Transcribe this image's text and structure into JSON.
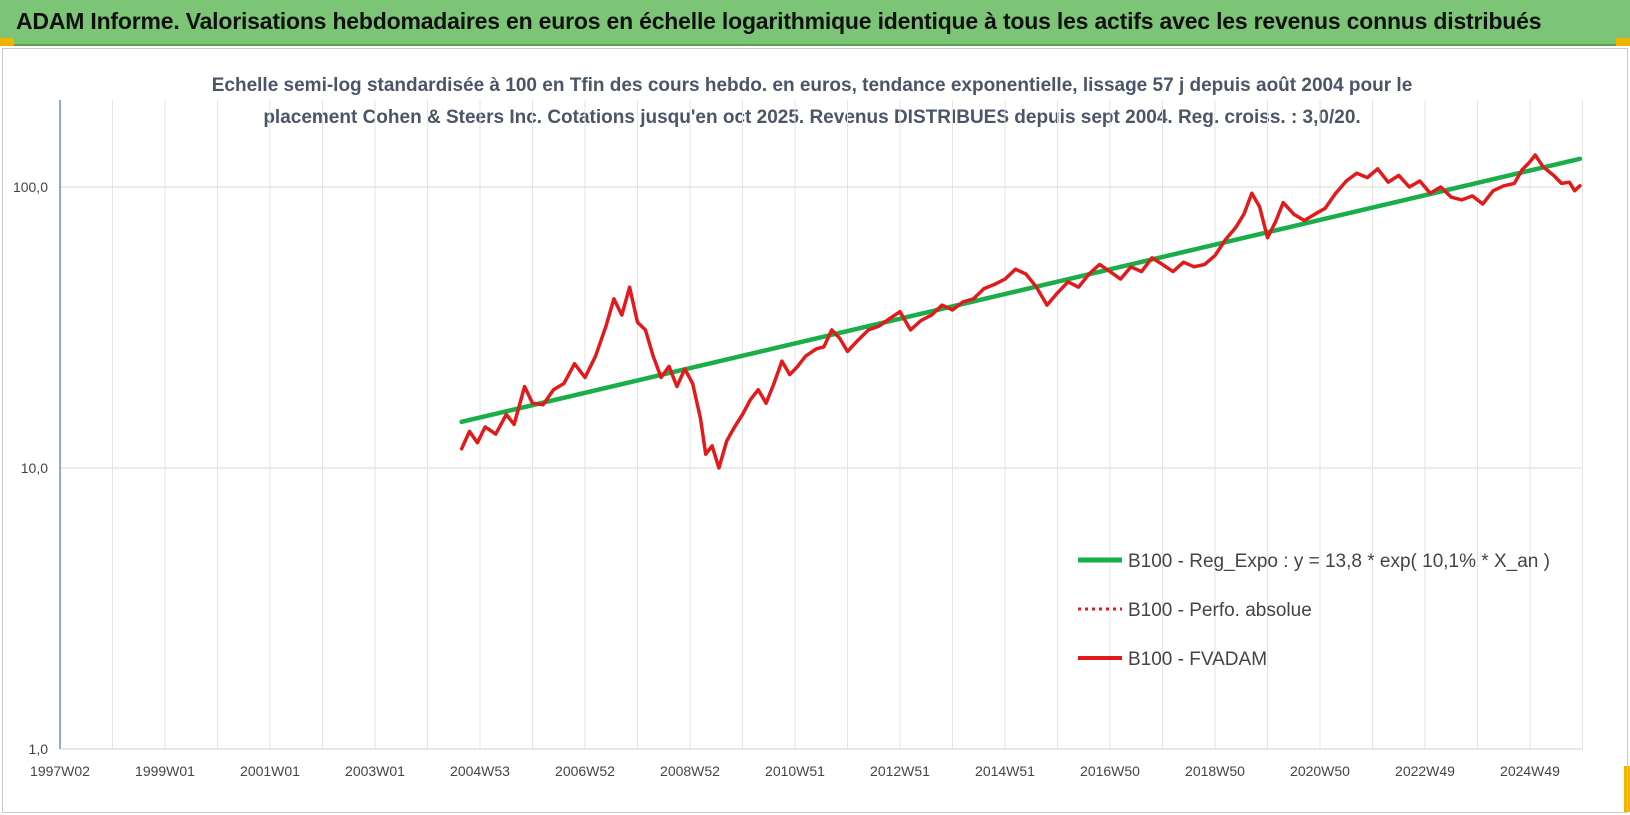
{
  "header": {
    "title": "ADAM Informe. Valorisations hebdomadaires en euros en échelle logarithmique identique à tous les actifs avec les revenus connus distribués"
  },
  "chart_data": {
    "type": "line",
    "subtitle_lines": [
      "Echelle semi-log standardisée à 100 en Tfin des cours hebdo. en euros, tendance exponentielle, lissage 57 j depuis août 2004 pour le",
      "placement Cohen & Steers Inc. Cotations jusqu'en oct 2025. Revenus DISTRIBUES depuis sept 2004. Reg. croiss. : 3,0/20."
    ],
    "y_scale": "log",
    "ylim": [
      1,
      180
    ],
    "y_ticks": [
      {
        "value": 1,
        "label": "1,0"
      },
      {
        "value": 10,
        "label": "10,0"
      },
      {
        "value": 100,
        "label": "100,0"
      }
    ],
    "x_unit": "year",
    "xlim": [
      1997.0,
      2026.0
    ],
    "x_ticks": [
      {
        "x": 1997.0,
        "label": "1997W02"
      },
      {
        "x": 1999.0,
        "label": "1999W01"
      },
      {
        "x": 2001.0,
        "label": "2001W01"
      },
      {
        "x": 2003.0,
        "label": "2003W01"
      },
      {
        "x": 2005.0,
        "label": "2004W53"
      },
      {
        "x": 2007.0,
        "label": "2006W52"
      },
      {
        "x": 2009.0,
        "label": "2008W52"
      },
      {
        "x": 2011.0,
        "label": "2010W51"
      },
      {
        "x": 2013.0,
        "label": "2012W51"
      },
      {
        "x": 2015.0,
        "label": "2014W51"
      },
      {
        "x": 2017.0,
        "label": "2016W50"
      },
      {
        "x": 2019.0,
        "label": "2018W50"
      },
      {
        "x": 2021.0,
        "label": "2020W50"
      },
      {
        "x": 2023.0,
        "label": "2022W49"
      },
      {
        "x": 2025.0,
        "label": "2024W49"
      }
    ],
    "grid": "vertical",
    "legend_position": "bottom-right",
    "series": [
      {
        "name": "B100 - Reg_Expo : y = 13,8 * exp( 10,1% *  X_an )",
        "color": "#1aae4a",
        "style": "solid",
        "points": [
          [
            2004.65,
            14.6
          ],
          [
            2025.95,
            126
          ]
        ]
      },
      {
        "name": "B100 - Perfo. absolue",
        "color": "#e31a1c",
        "style": "dotted",
        "points": []
      },
      {
        "name": "B100 - FVADAM",
        "color": "#e31a1c",
        "style": "solid",
        "points": [
          [
            2004.65,
            11.7
          ],
          [
            2004.8,
            13.5
          ],
          [
            2004.95,
            12.3
          ],
          [
            2005.1,
            14.0
          ],
          [
            2005.3,
            13.2
          ],
          [
            2005.5,
            15.5
          ],
          [
            2005.65,
            14.3
          ],
          [
            2005.85,
            19.5
          ],
          [
            2006.0,
            17.0
          ],
          [
            2006.2,
            16.8
          ],
          [
            2006.4,
            19.0
          ],
          [
            2006.6,
            20.0
          ],
          [
            2006.8,
            23.5
          ],
          [
            2007.0,
            21.0
          ],
          [
            2007.2,
            25.0
          ],
          [
            2007.4,
            32.0
          ],
          [
            2007.55,
            40.0
          ],
          [
            2007.7,
            35.0
          ],
          [
            2007.85,
            44.0
          ],
          [
            2008.0,
            33.0
          ],
          [
            2008.15,
            31.0
          ],
          [
            2008.3,
            25.0
          ],
          [
            2008.45,
            21.0
          ],
          [
            2008.6,
            23.0
          ],
          [
            2008.75,
            19.5
          ],
          [
            2008.9,
            22.5
          ],
          [
            2009.05,
            20.0
          ],
          [
            2009.2,
            15.0
          ],
          [
            2009.3,
            11.2
          ],
          [
            2009.42,
            12.0
          ],
          [
            2009.55,
            10.0
          ],
          [
            2009.7,
            12.5
          ],
          [
            2009.85,
            14.0
          ],
          [
            2010.0,
            15.5
          ],
          [
            2010.15,
            17.5
          ],
          [
            2010.3,
            19.0
          ],
          [
            2010.45,
            17.0
          ],
          [
            2010.6,
            20.0
          ],
          [
            2010.75,
            24.0
          ],
          [
            2010.9,
            21.5
          ],
          [
            2011.05,
            23.0
          ],
          [
            2011.2,
            25.0
          ],
          [
            2011.4,
            26.5
          ],
          [
            2011.55,
            27.0
          ],
          [
            2011.7,
            31.0
          ],
          [
            2011.85,
            29.0
          ],
          [
            2012.0,
            26.0
          ],
          [
            2012.2,
            28.5
          ],
          [
            2012.4,
            31.0
          ],
          [
            2012.6,
            32.0
          ],
          [
            2012.8,
            34.0
          ],
          [
            2013.0,
            36.0
          ],
          [
            2013.2,
            31.0
          ],
          [
            2013.4,
            33.5
          ],
          [
            2013.6,
            35.0
          ],
          [
            2013.8,
            38.0
          ],
          [
            2014.0,
            36.5
          ],
          [
            2014.2,
            39.0
          ],
          [
            2014.4,
            40.0
          ],
          [
            2014.6,
            43.5
          ],
          [
            2014.8,
            45.0
          ],
          [
            2015.0,
            47.0
          ],
          [
            2015.2,
            51.0
          ],
          [
            2015.4,
            49.0
          ],
          [
            2015.6,
            44.0
          ],
          [
            2015.8,
            38.0
          ],
          [
            2016.0,
            42.0
          ],
          [
            2016.2,
            46.0
          ],
          [
            2016.4,
            44.0
          ],
          [
            2016.6,
            49.0
          ],
          [
            2016.8,
            53.0
          ],
          [
            2017.0,
            50.0
          ],
          [
            2017.2,
            47.0
          ],
          [
            2017.4,
            52.0
          ],
          [
            2017.6,
            50.0
          ],
          [
            2017.8,
            56.0
          ],
          [
            2018.0,
            53.0
          ],
          [
            2018.2,
            50.0
          ],
          [
            2018.4,
            54.0
          ],
          [
            2018.6,
            52.0
          ],
          [
            2018.8,
            53.0
          ],
          [
            2019.0,
            57.0
          ],
          [
            2019.2,
            65.0
          ],
          [
            2019.4,
            72.0
          ],
          [
            2019.55,
            80.0
          ],
          [
            2019.7,
            95.0
          ],
          [
            2019.85,
            85.0
          ],
          [
            2020.0,
            66.0
          ],
          [
            2020.15,
            75.0
          ],
          [
            2020.3,
            88.0
          ],
          [
            2020.5,
            80.0
          ],
          [
            2020.7,
            76.0
          ],
          [
            2020.9,
            80.0
          ],
          [
            2021.1,
            84.0
          ],
          [
            2021.3,
            95.0
          ],
          [
            2021.5,
            105.0
          ],
          [
            2021.7,
            112.0
          ],
          [
            2021.9,
            108.0
          ],
          [
            2022.1,
            116.0
          ],
          [
            2022.3,
            104.0
          ],
          [
            2022.5,
            110.0
          ],
          [
            2022.7,
            100.0
          ],
          [
            2022.9,
            105.0
          ],
          [
            2023.1,
            95.0
          ],
          [
            2023.3,
            100.0
          ],
          [
            2023.5,
            92.0
          ],
          [
            2023.7,
            90.0
          ],
          [
            2023.9,
            93.0
          ],
          [
            2024.1,
            87.0
          ],
          [
            2024.3,
            97.0
          ],
          [
            2024.5,
            101.0
          ],
          [
            2024.7,
            103.0
          ],
          [
            2024.85,
            115.0
          ],
          [
            2025.0,
            123.0
          ],
          [
            2025.1,
            130.0
          ],
          [
            2025.25,
            118.0
          ],
          [
            2025.45,
            110.0
          ],
          [
            2025.6,
            103.0
          ],
          [
            2025.75,
            104.0
          ],
          [
            2025.85,
            97.0
          ],
          [
            2025.95,
            101.0
          ]
        ]
      }
    ]
  }
}
